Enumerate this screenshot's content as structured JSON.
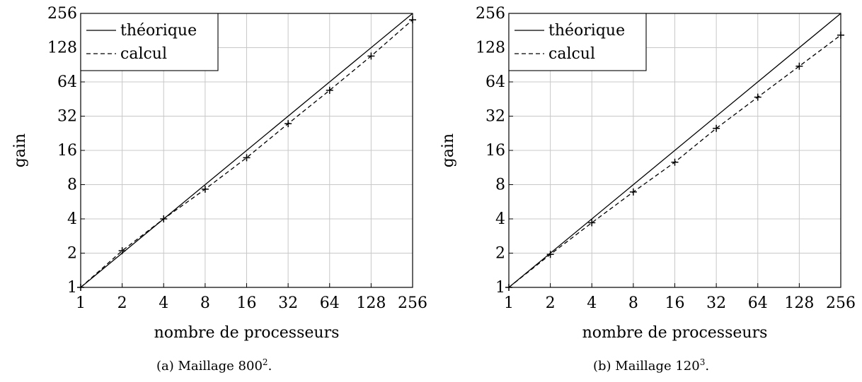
{
  "chart_data": [
    {
      "type": "line",
      "scale": "log2",
      "xlabel": "nombre de processeurs",
      "ylabel": "gain",
      "xlim": [
        1,
        256
      ],
      "ylim": [
        1,
        256
      ],
      "xticks": [
        "1",
        "2",
        "4",
        "8",
        "16",
        "32",
        "64",
        "128",
        "256"
      ],
      "yticks": [
        "1",
        "2",
        "4",
        "8",
        "16",
        "32",
        "64",
        "128",
        "256"
      ],
      "grid": true,
      "legend_position": "top-left",
      "series": [
        {
          "name": "théorique",
          "style": "solid",
          "marker": "none",
          "x": [
            1,
            256
          ],
          "y": [
            1,
            256
          ]
        },
        {
          "name": "calcul",
          "style": "dashed",
          "marker": "+",
          "x": [
            1,
            2,
            4,
            8,
            16,
            32,
            64,
            128,
            256
          ],
          "y": [
            1,
            2.1,
            4.0,
            7.3,
            13.8,
            27.5,
            54,
            108,
            225
          ]
        }
      ],
      "caption": {
        "prefix": "(a) Maillage 800",
        "sup": "2",
        "suffix": "."
      }
    },
    {
      "type": "line",
      "scale": "log2",
      "xlabel": "nombre de processeurs",
      "ylabel": "gain",
      "xlim": [
        1,
        256
      ],
      "ylim": [
        1,
        256
      ],
      "xticks": [
        "1",
        "2",
        "4",
        "8",
        "16",
        "32",
        "64",
        "128",
        "256"
      ],
      "yticks": [
        "1",
        "2",
        "4",
        "8",
        "16",
        "32",
        "64",
        "128",
        "256"
      ],
      "grid": true,
      "legend_position": "top-left",
      "series": [
        {
          "name": "théorique",
          "style": "solid",
          "marker": "none",
          "x": [
            1,
            256
          ],
          "y": [
            1,
            256
          ]
        },
        {
          "name": "calcul",
          "style": "dashed",
          "marker": "+",
          "x": [
            1,
            2,
            4,
            8,
            16,
            32,
            64,
            128,
            256
          ],
          "y": [
            1,
            1.95,
            3.7,
            6.9,
            12.6,
            25,
            47,
            88,
            165
          ]
        }
      ],
      "caption": {
        "prefix": "(b) Maillage 120",
        "sup": "3",
        "suffix": "."
      }
    }
  ]
}
